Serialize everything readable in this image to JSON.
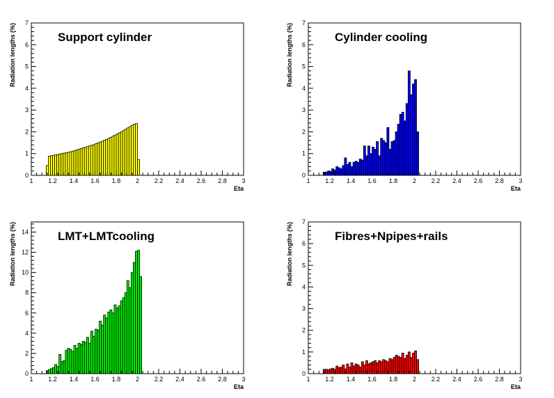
{
  "chart_data": [
    {
      "type": "bar",
      "title": "Support cylinder",
      "xlabel": "Eta",
      "ylabel": "Radiation lengths (%)",
      "xlim": [
        1,
        3
      ],
      "ylim": [
        0,
        7
      ],
      "xticks": [
        "1",
        "1.2",
        "1.4",
        "1.6",
        "1.8",
        "2",
        "2.2",
        "2.4",
        "2.6",
        "2.8",
        "3"
      ],
      "yticks": [
        "0",
        "1",
        "2",
        "3",
        "4",
        "5",
        "6",
        "7"
      ],
      "fill": "#ffff00",
      "bin_start": 1.14,
      "bin_width": 0.02,
      "values": [
        0.45,
        0.88,
        0.9,
        0.92,
        0.94,
        0.96,
        0.98,
        1.0,
        1.02,
        1.04,
        1.06,
        1.08,
        1.11,
        1.14,
        1.17,
        1.2,
        1.23,
        1.26,
        1.29,
        1.32,
        1.35,
        1.38,
        1.41,
        1.45,
        1.49,
        1.53,
        1.57,
        1.61,
        1.65,
        1.7,
        1.75,
        1.8,
        1.85,
        1.9,
        1.95,
        2.0,
        2.06,
        2.12,
        2.18,
        2.24,
        2.3,
        2.35,
        2.38,
        0.72
      ]
    },
    {
      "type": "bar",
      "title": "Cylinder cooling",
      "xlabel": "Eta",
      "ylabel": "Radiation lengths (%)",
      "xlim": [
        1,
        3
      ],
      "ylim": [
        0,
        7
      ],
      "xticks": [
        "1",
        "1.2",
        "1.4",
        "1.6",
        "1.8",
        "2",
        "2.2",
        "2.4",
        "2.6",
        "2.8",
        "3"
      ],
      "yticks": [
        "0",
        "1",
        "2",
        "3",
        "4",
        "5",
        "6",
        "7"
      ],
      "fill": "#0000ff",
      "bin_start": 1.14,
      "bin_width": 0.02,
      "values": [
        0.15,
        0.15,
        0.2,
        0.18,
        0.3,
        0.25,
        0.4,
        0.35,
        0.3,
        0.45,
        0.8,
        0.5,
        0.6,
        0.4,
        0.6,
        0.65,
        0.6,
        0.75,
        0.7,
        1.35,
        0.9,
        1.35,
        1.0,
        1.3,
        1.2,
        1.55,
        0.9,
        1.7,
        1.6,
        1.5,
        2.2,
        1.2,
        1.55,
        1.6,
        2.0,
        2.35,
        2.8,
        2.9,
        2.5,
        3.3,
        4.8,
        3.7,
        4.2,
        4.4,
        2.0
      ]
    },
    {
      "type": "bar",
      "title": "LMT+LMTcooling",
      "xlabel": "Eta",
      "ylabel": "Radiation lengths (%)",
      "xlim": [
        1,
        3
      ],
      "ylim": [
        0,
        15
      ],
      "xticks": [
        "1",
        "1.2",
        "1.4",
        "1.6",
        "1.8",
        "2",
        "2.2",
        "2.4",
        "2.6",
        "2.8",
        "3"
      ],
      "yticks": [
        "0",
        "2",
        "4",
        "6",
        "8",
        "10",
        "12",
        "14"
      ],
      "fill": "#00ee00",
      "bin_start": 1.14,
      "bin_width": 0.02,
      "values": [
        0.3,
        0.4,
        0.5,
        0.6,
        0.9,
        0.7,
        1.9,
        1.2,
        1.3,
        2.3,
        2.5,
        2.4,
        2.2,
        2.8,
        2.5,
        3.0,
        2.9,
        3.2,
        3.1,
        3.6,
        3.0,
        4.2,
        3.7,
        4.4,
        4.3,
        5.2,
        4.8,
        5.8,
        5.5,
        6.1,
        6.3,
        6.0,
        6.8,
        6.5,
        6.7,
        7.2,
        7.5,
        8.0,
        9.2,
        8.5,
        10.0,
        11.0,
        12.1,
        12.2,
        9.6
      ]
    },
    {
      "type": "bar",
      "title": "Fibres+Npipes+rails",
      "xlabel": "Eta",
      "ylabel": "Radiation lengths (%)",
      "xlim": [
        1,
        3
      ],
      "ylim": [
        0,
        7
      ],
      "xticks": [
        "1",
        "1.2",
        "1.4",
        "1.6",
        "1.8",
        "2",
        "2.2",
        "2.4",
        "2.6",
        "2.8",
        "3"
      ],
      "yticks": [
        "0",
        "1",
        "2",
        "3",
        "4",
        "5",
        "6",
        "7"
      ],
      "fill": "#ff0000",
      "bin_start": 1.14,
      "bin_width": 0.02,
      "values": [
        0.2,
        0.2,
        0.18,
        0.22,
        0.25,
        0.2,
        0.35,
        0.28,
        0.3,
        0.4,
        0.22,
        0.45,
        0.3,
        0.5,
        0.35,
        0.45,
        0.4,
        0.3,
        0.55,
        0.4,
        0.6,
        0.45,
        0.5,
        0.55,
        0.6,
        0.5,
        0.6,
        0.55,
        0.65,
        0.6,
        0.55,
        0.7,
        0.65,
        0.75,
        0.85,
        0.8,
        0.75,
        0.95,
        0.7,
        0.85,
        1.0,
        0.75,
        0.95,
        1.05,
        0.65
      ]
    }
  ]
}
